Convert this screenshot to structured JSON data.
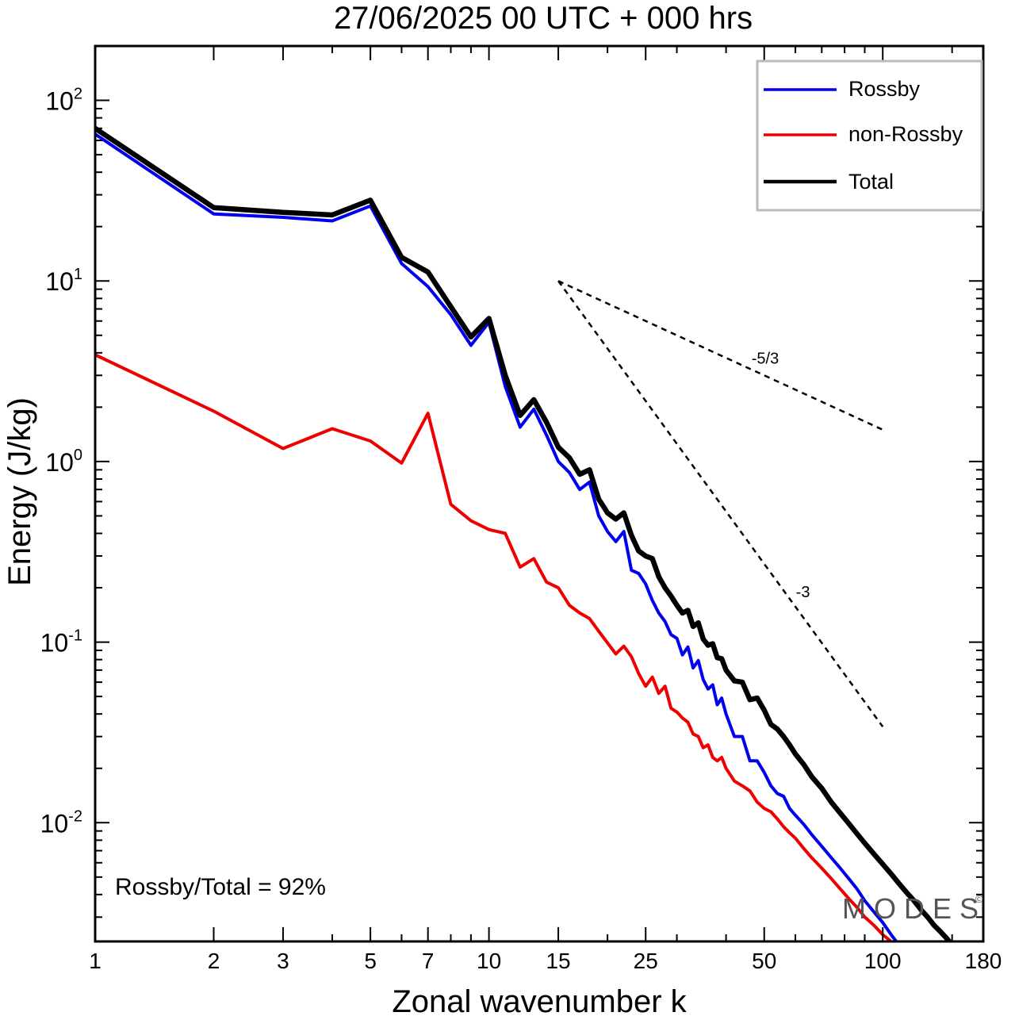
{
  "chart_data": {
    "type": "line",
    "title": "27/06/2025  00 UTC  + 000 hrs",
    "xlabel": "Zonal wavenumber k",
    "ylabel": "Energy (J/kg)",
    "xscale": "log",
    "yscale": "log",
    "xlim": [
      1,
      180
    ],
    "ylim": [
      0.0022,
      200
    ],
    "x_ticks": [
      1,
      2,
      3,
      5,
      7,
      10,
      15,
      25,
      50,
      100,
      180
    ],
    "x_tick_labels": [
      "1",
      "2",
      "3",
      "5",
      "7",
      "10",
      "15",
      "25",
      "50",
      "100",
      "180"
    ],
    "y_ticks": [
      {
        "value": 100,
        "base": "10",
        "exp": "2"
      },
      {
        "value": 10,
        "base": "10",
        "exp": "1"
      },
      {
        "value": 1,
        "base": "10",
        "exp": "0"
      },
      {
        "value": 0.1,
        "base": "10",
        "exp": "-1"
      },
      {
        "value": 0.01,
        "base": "10",
        "exp": "-2"
      }
    ],
    "legend_position": "top-right",
    "series": [
      {
        "name": "Rossby",
        "color": "#0000ee",
        "x": [
          1,
          2,
          3,
          4,
          5,
          6,
          7,
          8,
          9,
          10,
          11,
          12,
          13,
          14,
          15,
          16,
          17,
          18,
          19,
          20,
          21,
          22,
          23,
          24,
          25,
          26,
          27,
          28,
          29,
          30,
          31,
          32,
          33,
          34,
          35,
          36,
          37,
          38,
          39,
          40,
          42,
          44,
          46,
          48,
          50,
          52,
          54,
          56,
          58,
          60,
          63,
          66,
          70,
          74,
          78,
          82,
          86,
          90,
          95,
          100,
          105,
          110,
          115
        ],
        "y": [
          65,
          23.5,
          22.5,
          21.5,
          26,
          12.5,
          9.3,
          6.5,
          4.4,
          5.9,
          2.6,
          1.55,
          1.95,
          1.4,
          1.0,
          0.87,
          0.7,
          0.77,
          0.5,
          0.41,
          0.36,
          0.41,
          0.25,
          0.24,
          0.21,
          0.17,
          0.145,
          0.13,
          0.11,
          0.105,
          0.085,
          0.094,
          0.072,
          0.079,
          0.062,
          0.055,
          0.058,
          0.045,
          0.049,
          0.04,
          0.03,
          0.03,
          0.022,
          0.022,
          0.019,
          0.016,
          0.0145,
          0.014,
          0.012,
          0.011,
          0.0098,
          0.0086,
          0.0074,
          0.0064,
          0.0056,
          0.0049,
          0.0043,
          0.0037,
          0.0032,
          0.0028,
          0.0024,
          0.0021,
          0.0019
        ]
      },
      {
        "name": "non-Rossby",
        "color": "#ee0000",
        "x": [
          1,
          2,
          3,
          4,
          5,
          6,
          7,
          8,
          9,
          10,
          11,
          12,
          13,
          14,
          15,
          16,
          17,
          18,
          19,
          20,
          21,
          22,
          23,
          24,
          25,
          26,
          27,
          28,
          29,
          30,
          31,
          32,
          33,
          34,
          35,
          36,
          37,
          38,
          39,
          40,
          42,
          44,
          46,
          48,
          50,
          52,
          54,
          56,
          58,
          60,
          63,
          66,
          70,
          74,
          78,
          82,
          86,
          90,
          95,
          100,
          105,
          110,
          115,
          120
        ],
        "y": [
          3.9,
          1.9,
          1.18,
          1.52,
          1.3,
          0.98,
          1.85,
          0.58,
          0.47,
          0.42,
          0.4,
          0.26,
          0.29,
          0.215,
          0.2,
          0.16,
          0.145,
          0.135,
          0.115,
          0.099,
          0.086,
          0.095,
          0.083,
          0.067,
          0.057,
          0.064,
          0.052,
          0.057,
          0.043,
          0.041,
          0.038,
          0.036,
          0.031,
          0.03,
          0.026,
          0.027,
          0.023,
          0.022,
          0.023,
          0.02,
          0.017,
          0.016,
          0.015,
          0.013,
          0.012,
          0.0115,
          0.0105,
          0.0095,
          0.0088,
          0.0082,
          0.0072,
          0.0064,
          0.0056,
          0.0049,
          0.0043,
          0.0038,
          0.0034,
          0.003,
          0.0027,
          0.0024,
          0.0022,
          0.002,
          0.0018,
          0.0016
        ]
      },
      {
        "name": "Total",
        "color": "#000000",
        "x": [
          1,
          2,
          3,
          4,
          5,
          6,
          7,
          8,
          9,
          10,
          11,
          12,
          13,
          14,
          15,
          16,
          17,
          18,
          19,
          20,
          21,
          22,
          23,
          24,
          25,
          26,
          27,
          28,
          29,
          30,
          31,
          32,
          33,
          34,
          35,
          36,
          37,
          38,
          39,
          40,
          42,
          44,
          46,
          48,
          50,
          52,
          54,
          56,
          58,
          60,
          63,
          66,
          70,
          74,
          78,
          82,
          86,
          90,
          95,
          100,
          105,
          110,
          115,
          120,
          125,
          130,
          135,
          140,
          145,
          150,
          155
        ],
        "y": [
          70,
          25.5,
          24,
          23.2,
          28,
          13.5,
          11.2,
          7.2,
          4.9,
          6.2,
          3.0,
          1.8,
          2.2,
          1.65,
          1.2,
          1.05,
          0.85,
          0.9,
          0.62,
          0.52,
          0.48,
          0.52,
          0.39,
          0.32,
          0.3,
          0.29,
          0.23,
          0.2,
          0.18,
          0.16,
          0.145,
          0.15,
          0.122,
          0.128,
          0.104,
          0.096,
          0.098,
          0.082,
          0.081,
          0.07,
          0.061,
          0.06,
          0.048,
          0.049,
          0.042,
          0.035,
          0.033,
          0.03,
          0.027,
          0.024,
          0.021,
          0.018,
          0.0155,
          0.013,
          0.0113,
          0.0099,
          0.0087,
          0.0077,
          0.0067,
          0.0059,
          0.0052,
          0.0046,
          0.0041,
          0.0037,
          0.0033,
          0.003,
          0.0027,
          0.0025,
          0.0023,
          0.0021,
          0.002
        ]
      }
    ],
    "reference_slopes": [
      {
        "label": "-5/3",
        "x": [
          15,
          100
        ],
        "y": [
          10,
          1.5
        ]
      },
      {
        "label": "-3",
        "x": [
          15,
          100
        ],
        "y": [
          10,
          0.034
        ]
      }
    ],
    "annotations": {
      "ratio_text": "Rossby/Total = 92%",
      "watermark": "MODES",
      "copyright": "©"
    }
  }
}
